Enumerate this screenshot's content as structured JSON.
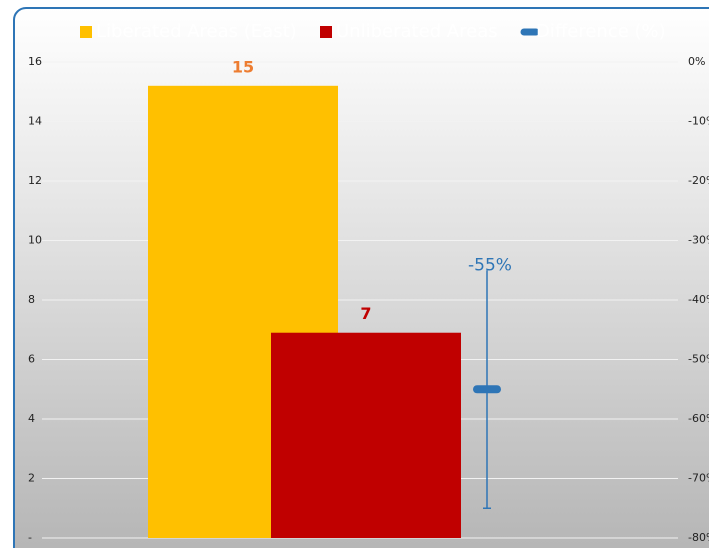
{
  "chart_data": {
    "type": "bar",
    "categories": [
      null
    ],
    "series": [
      {
        "name": "Liberated Areas (East)",
        "color": "#ffc000",
        "label_color": "#ed7d31",
        "values": [
          15.2
        ],
        "value_labels": [
          "15"
        ]
      },
      {
        "name": "Unliberated Areas",
        "color": "#c00000",
        "label_color": "#c00000",
        "values": [
          6.9
        ],
        "value_labels": [
          "7"
        ]
      },
      {
        "name": "Difference (%)",
        "color": "#2e75b6",
        "label_color": "#2e75b6",
        "axis": "y2",
        "mark": "dash",
        "values": [
          -55
        ],
        "errors": [
          20
        ],
        "value_labels": [
          "-55%"
        ]
      }
    ],
    "ylim": [
      0,
      16
    ],
    "yticks": [
      {
        "value": 0,
        "label": "-"
      },
      2,
      4,
      6,
      8,
      10,
      12,
      14,
      16
    ],
    "y2lim": [
      -80,
      0
    ],
    "y2ticks": [
      {
        "value": 0,
        "label": "0%"
      },
      {
        "value": -10,
        "label": "-10%"
      },
      {
        "value": -20,
        "label": "-20%"
      },
      {
        "value": -30,
        "label": "-30%"
      },
      {
        "value": -40,
        "label": "-40%"
      },
      {
        "value": -50,
        "label": "-50%"
      },
      {
        "value": -60,
        "label": "-60%"
      },
      {
        "value": -70,
        "label": "-70%"
      },
      {
        "value": -80,
        "label": "-80%"
      }
    ],
    "grid": true,
    "legend": "top"
  }
}
